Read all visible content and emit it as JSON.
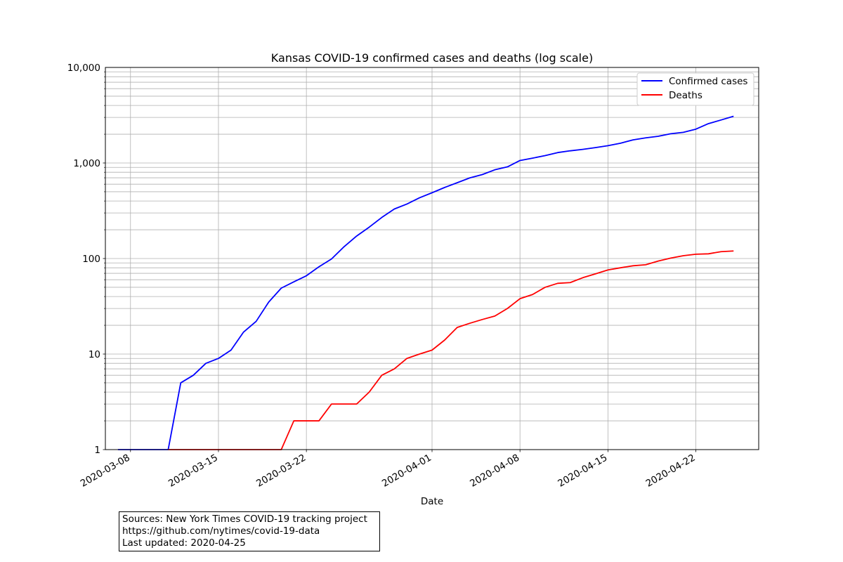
{
  "chart_data": {
    "type": "line",
    "title": "Kansas COVID-19 confirmed cases and deaths (log scale)",
    "xlabel": "Date",
    "ylabel": "",
    "yscale": "log",
    "ylim": [
      1,
      10000
    ],
    "xlim": [
      "2020-03-06",
      "2020-04-27"
    ],
    "grid": true,
    "legend_position": "top-right",
    "x_ticks": [
      "2020-03-08",
      "2020-03-15",
      "2020-03-22",
      "2020-04-01",
      "2020-04-08",
      "2020-04-15",
      "2020-04-22"
    ],
    "y_ticks": [
      {
        "value": 1,
        "label": "1"
      },
      {
        "value": 10,
        "label": "10"
      },
      {
        "value": 100,
        "label": "100"
      },
      {
        "value": 1000,
        "label": "1,000"
      },
      {
        "value": 10000,
        "label": "10,000"
      }
    ],
    "series": [
      {
        "name": "Confirmed cases",
        "color": "#0000ff",
        "x": [
          "2020-03-07",
          "2020-03-08",
          "2020-03-09",
          "2020-03-10",
          "2020-03-11",
          "2020-03-12",
          "2020-03-13",
          "2020-03-14",
          "2020-03-15",
          "2020-03-16",
          "2020-03-17",
          "2020-03-18",
          "2020-03-19",
          "2020-03-20",
          "2020-03-21",
          "2020-03-22",
          "2020-03-23",
          "2020-03-24",
          "2020-03-25",
          "2020-03-26",
          "2020-03-27",
          "2020-03-28",
          "2020-03-29",
          "2020-03-30",
          "2020-03-31",
          "2020-04-01",
          "2020-04-02",
          "2020-04-03",
          "2020-04-04",
          "2020-04-05",
          "2020-04-06",
          "2020-04-07",
          "2020-04-08",
          "2020-04-09",
          "2020-04-10",
          "2020-04-11",
          "2020-04-12",
          "2020-04-13",
          "2020-04-14",
          "2020-04-15",
          "2020-04-16",
          "2020-04-17",
          "2020-04-18",
          "2020-04-19",
          "2020-04-20",
          "2020-04-21",
          "2020-04-22",
          "2020-04-23",
          "2020-04-24",
          "2020-04-25"
        ],
        "values": [
          1,
          1,
          1,
          1,
          1,
          5,
          6,
          8,
          9,
          11,
          17,
          22,
          35,
          49,
          57,
          66,
          82,
          99,
          133,
          172,
          213,
          269,
          330,
          372,
          432,
          488,
          554,
          621,
          698,
          756,
          849,
          911,
          1062,
          1124,
          1194,
          1285,
          1341,
          1389,
          1448,
          1517,
          1609,
          1746,
          1833,
          1904,
          2022,
          2094,
          2260,
          2582,
          2818,
          3085
        ]
      },
      {
        "name": "Deaths",
        "color": "#ff0000",
        "x": [
          "2020-03-11",
          "2020-03-12",
          "2020-03-13",
          "2020-03-14",
          "2020-03-15",
          "2020-03-16",
          "2020-03-17",
          "2020-03-18",
          "2020-03-19",
          "2020-03-20",
          "2020-03-21",
          "2020-03-22",
          "2020-03-23",
          "2020-03-24",
          "2020-03-25",
          "2020-03-26",
          "2020-03-27",
          "2020-03-28",
          "2020-03-29",
          "2020-03-30",
          "2020-03-31",
          "2020-04-01",
          "2020-04-02",
          "2020-04-03",
          "2020-04-04",
          "2020-04-05",
          "2020-04-06",
          "2020-04-07",
          "2020-04-08",
          "2020-04-09",
          "2020-04-10",
          "2020-04-11",
          "2020-04-12",
          "2020-04-13",
          "2020-04-14",
          "2020-04-15",
          "2020-04-16",
          "2020-04-17",
          "2020-04-18",
          "2020-04-19",
          "2020-04-20",
          "2020-04-21",
          "2020-04-22",
          "2020-04-23",
          "2020-04-24",
          "2020-04-25"
        ],
        "values": [
          1,
          1,
          1,
          1,
          1,
          1,
          1,
          1,
          1,
          1,
          2,
          2,
          2,
          3,
          3,
          3,
          4,
          6,
          7,
          9,
          10,
          11,
          14,
          19,
          21,
          23,
          25,
          30,
          38,
          42,
          50,
          55,
          56,
          63,
          69,
          76,
          80,
          84,
          86,
          94,
          101,
          107,
          111,
          112,
          118,
          120
        ]
      }
    ]
  },
  "footer": {
    "line1": "Sources: New York Times COVID-19 tracking project",
    "line2": "https://github.com/nytimes/covid-19-data",
    "line3": "Last updated: 2020-04-25"
  }
}
